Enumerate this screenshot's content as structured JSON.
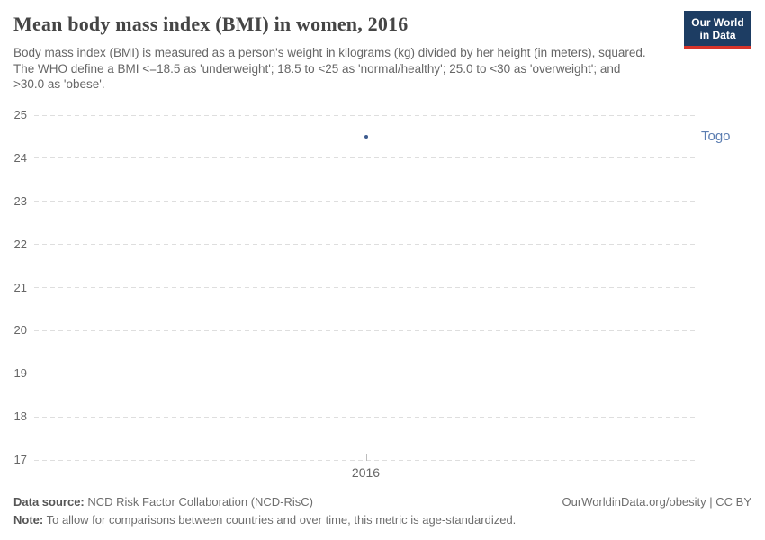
{
  "header": {
    "title": "Mean body mass index (BMI) in women, 2016",
    "subtitle": "Body mass index (BMI) is measured as a person's weight in kilograms (kg) divided by her height (in meters), squared. The WHO define a BMI <=18.5 as 'underweight'; 18.5 to <25 as 'normal/healthy'; 25.0 to <30 as 'overweight'; and >30.0 as 'obese'.",
    "logo": {
      "line1": "Our World",
      "line2": "in Data",
      "bg_color": "#1d3d63",
      "accent_color": "#d7342a"
    }
  },
  "chart_data": {
    "type": "scatter",
    "title": "Mean body mass index (BMI) in women, 2016",
    "x": [
      2016
    ],
    "xticks": [
      "2016"
    ],
    "yticks": [
      25,
      24,
      23,
      22,
      21,
      20,
      19,
      18,
      17
    ],
    "ylim": [
      17,
      25
    ],
    "grid": "horizontal-dashed",
    "legend_position": "right-of-point",
    "series": [
      {
        "name": "Togo",
        "year": 2016,
        "value": 24.5,
        "dot_color": "#3e5c8f",
        "label_color": "#5b7db1"
      }
    ]
  },
  "footer": {
    "datasource_label": "Data source:",
    "datasource_value": " NCD Risk Factor Collaboration (NCD-RisC)",
    "note_label": "Note:",
    "note_value": " To allow for comparisons between countries and over time, this metric is age-standardized.",
    "link": "OurWorldinData.org/obesity | CC BY"
  }
}
